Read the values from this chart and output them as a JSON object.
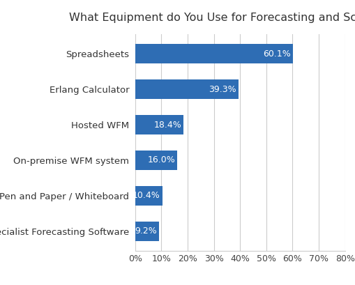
{
  "title": "What Equipment do You Use for Forecasting and Scheduling?",
  "categories": [
    "Specialist Forecasting Software",
    "Pen and Paper / Whiteboard",
    "On-premise WFM system",
    "Hosted WFM",
    "Erlang Calculator",
    "Spreadsheets"
  ],
  "values": [
    9.2,
    10.4,
    16.0,
    18.4,
    39.3,
    60.1
  ],
  "bar_color": "#2E6DB4",
  "label_color": "#FFFFFF",
  "xlim": [
    0,
    80
  ],
  "xticks": [
    0,
    10,
    20,
    30,
    40,
    50,
    60,
    70,
    80
  ],
  "title_fontsize": 11.5,
  "label_fontsize": 9.5,
  "bar_label_fontsize": 9,
  "tick_fontsize": 9,
  "background_color": "#FFFFFF",
  "grid_color": "#CCCCCC"
}
